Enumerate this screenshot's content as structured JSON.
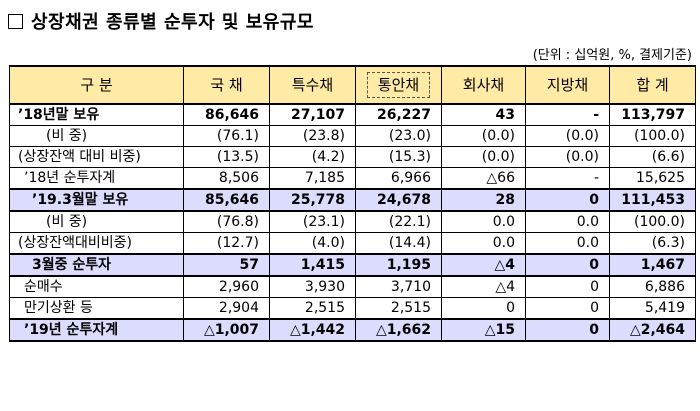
{
  "title": "상장채권 종류별 순투자 및 보유규모",
  "unit_note": "(단위 : 십억원, %, 결제기준)",
  "headers": [
    "구 분",
    "국 채",
    "특수채",
    "통안채",
    "회사채",
    "지방채",
    "합 계"
  ],
  "rows": [
    {
      "label": "’18년말 보유",
      "cells": [
        "86,646",
        "27,107",
        "26,227",
        "43",
        "-",
        "113,797"
      ]
    },
    {
      "label": "(비 중)",
      "cells": [
        "(76.1)",
        "(23.8)",
        "(23.0)",
        "(0.0)",
        "(0.0)",
        "(100.0)"
      ]
    },
    {
      "label": "(상장잔액 대비 비중)",
      "cells": [
        "(13.5)",
        "(4.2)",
        "(15.3)",
        "(0.0)",
        "(0.0)",
        "(6.6)"
      ]
    },
    {
      "label": "’18년 순투자계",
      "cells": [
        "8,506",
        "7,185",
        "6,966",
        "△66",
        "-",
        "15,625"
      ]
    },
    {
      "label": "’19.3월말 보유",
      "cells": [
        "85,646",
        "25,778",
        "24,678",
        "28",
        "0",
        "111,453"
      ]
    },
    {
      "label": "(비 중)",
      "cells": [
        "(76.8)",
        "(23.1)",
        "(22.1)",
        "0.0",
        "0.0",
        "(100.0)"
      ]
    },
    {
      "label": "(상장잔액대비비중)",
      "cells": [
        "(12.7)",
        "(4.0)",
        "(14.4)",
        "0.0",
        "0.0",
        "(6.3)"
      ]
    },
    {
      "label": "3월중 순투자",
      "cells": [
        "57",
        "1,415",
        "1,195",
        "△4",
        "0",
        "1,467"
      ]
    },
    {
      "label": "순매수",
      "cells": [
        "2,960",
        "3,930",
        "3,710",
        "△4",
        "0",
        "6,886"
      ]
    },
    {
      "label": "만기상환 등",
      "cells": [
        "2,904",
        "2,515",
        "2,515",
        "0",
        "0",
        "5,419"
      ]
    },
    {
      "label": "’19년 순투자계",
      "cells": [
        "△1,007",
        "△1,442",
        "△1,662",
        "△15",
        "0",
        "△2,464"
      ]
    }
  ]
}
